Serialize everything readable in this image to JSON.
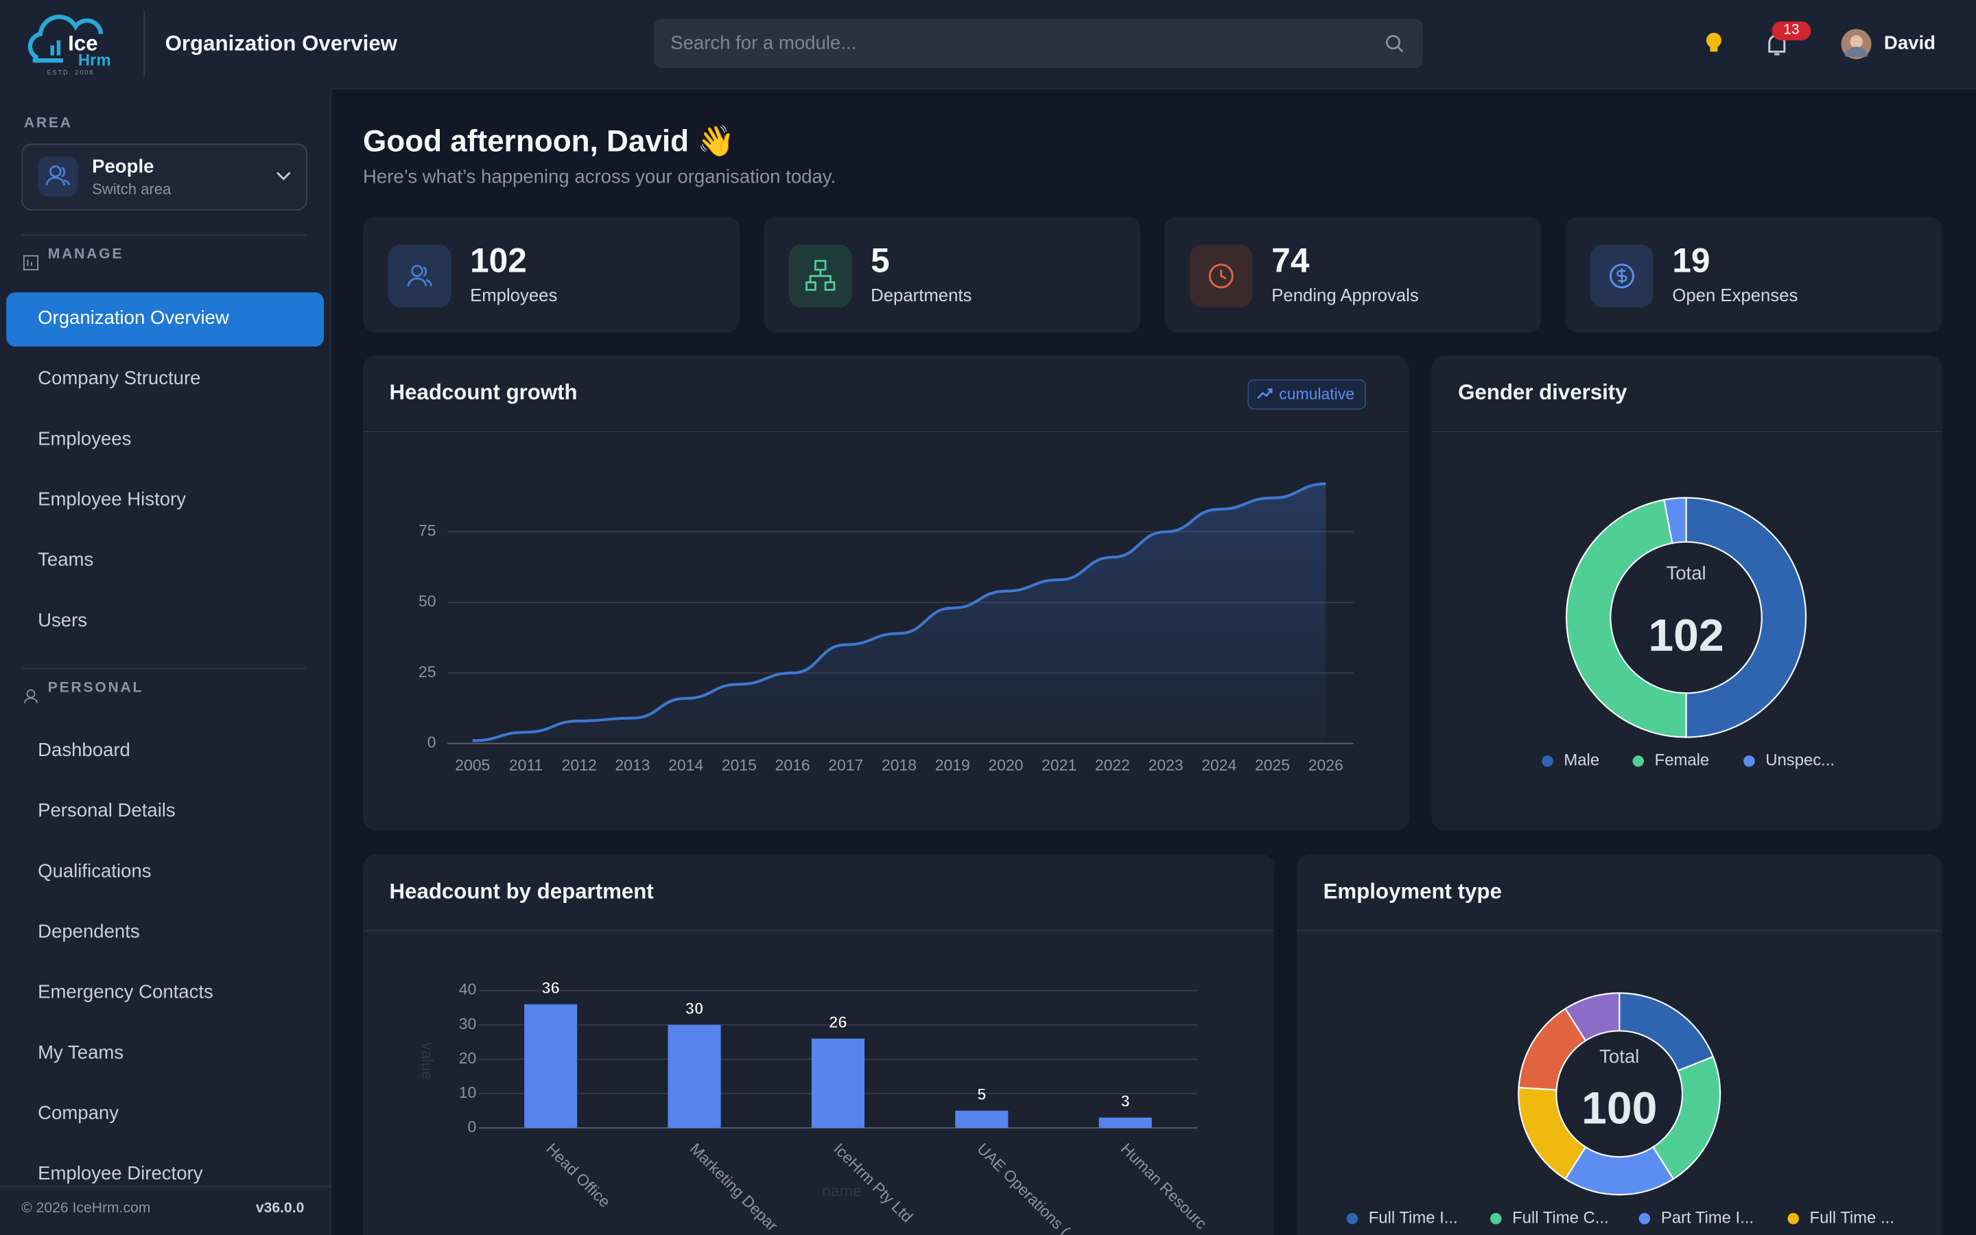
{
  "header": {
    "logo_top": "Ice",
    "logo_bottom": "Hrm",
    "logo_tag": "ESTD. 2008",
    "title": "Organization Overview",
    "search_placeholder": "Search for a module...",
    "notifications": 13,
    "user": "David"
  },
  "sidebar": {
    "area_label": "AREA",
    "area_name": "People",
    "area_sub": "Switch area",
    "sections": [
      {
        "title": "MANAGE",
        "items": [
          "Organization Overview",
          "Company Structure",
          "Employees",
          "Employee History",
          "Teams",
          "Users"
        ]
      },
      {
        "title": "PERSONAL",
        "items": [
          "Dashboard",
          "Personal Details",
          "Qualifications",
          "Dependents",
          "Emergency Contacts",
          "My Teams",
          "Company",
          "Employee Directory"
        ]
      }
    ],
    "copyright": "© 2026 IceHrm.com",
    "version": "v36.0.0"
  },
  "greeting": {
    "title": "Good afternoon, David 👋",
    "subtitle": "Here’s what’s happening across your organisation today."
  },
  "stats": [
    {
      "value": 102,
      "label": "Employees"
    },
    {
      "value": 5,
      "label": "Departments"
    },
    {
      "value": 74,
      "label": "Pending Approvals"
    },
    {
      "value": 19,
      "label": "Open Expenses"
    }
  ],
  "chart_data": [
    {
      "type": "line",
      "title": "Headcount growth",
      "badge": "cumulative",
      "categories": [
        "2005",
        "2011",
        "2012",
        "2013",
        "2014",
        "2015",
        "2016",
        "2017",
        "2018",
        "2019",
        "2020",
        "2021",
        "2022",
        "2023",
        "2024",
        "2025",
        "2026"
      ],
      "values": [
        1,
        4,
        8,
        9,
        16,
        21,
        25,
        35,
        39,
        48,
        54,
        58,
        66,
        75,
        83,
        87,
        92
      ],
      "color": "#3f78d0",
      "ylim": [
        0,
        100
      ],
      "yticks": [
        0,
        25,
        50,
        75
      ],
      "grid": true
    },
    {
      "type": "pie",
      "title": "Gender diversity",
      "center_label": "Total",
      "total": 102,
      "categories": [
        "Male",
        "Female",
        "Unspec..."
      ],
      "values": [
        51,
        48,
        3
      ],
      "colors": [
        "#2f65b0",
        "#4fcf95",
        "#5b8ef0"
      ]
    },
    {
      "type": "bar",
      "title": "Headcount by department",
      "categories": [
        "Head Office",
        "Marketing Depar",
        "IceHrm Pty Ltd",
        "UAE Operations (",
        "Human Resourc"
      ],
      "values": [
        36,
        30,
        26,
        5,
        3
      ],
      "color": "#5585ec",
      "xlabel": "name",
      "ylabel": "value",
      "ylim": [
        0,
        40
      ],
      "yticks": [
        0,
        10,
        20,
        30,
        40
      ],
      "grid": true
    },
    {
      "type": "pie",
      "title": "Employment type",
      "center_label": "Total",
      "total": 100,
      "categories": [
        "Full Time I...",
        "Full Time C...",
        "Part Time I...",
        "Full Time ...",
        null,
        null
      ],
      "values": [
        19,
        22,
        18,
        17,
        15,
        9
      ],
      "colors": [
        "#2f65b0",
        "#4fcf95",
        "#5b8ef0",
        "#f0b90f",
        "#e0643f",
        "#8c6cc9"
      ]
    }
  ]
}
